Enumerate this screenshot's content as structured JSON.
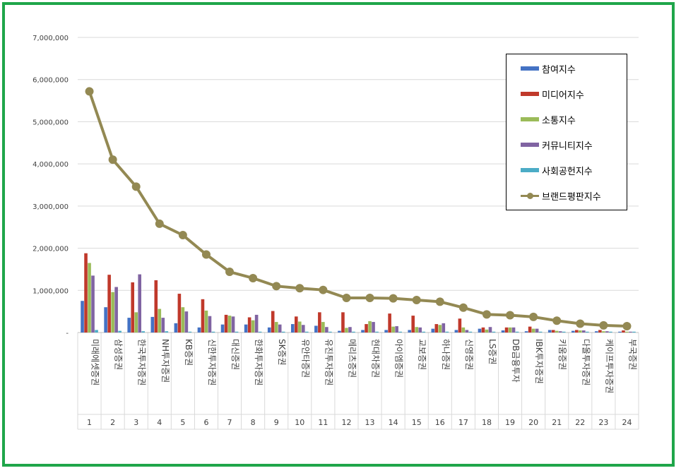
{
  "chart_data": {
    "type": "bar",
    "ylim": [
      0,
      7000000
    ],
    "yticks": [
      "7,000,000",
      "6,000,000",
      "5,000,000",
      "4,000,000",
      "3,000,000",
      "2,000,000",
      "1,000,000",
      "-"
    ],
    "categories": [
      "미래에셋증권",
      "삼성증권",
      "한국투자증권",
      "NH투자증권",
      "KB증권",
      "신한투자증권",
      "대신증권",
      "한화투자증권",
      "SK증권",
      "유안타증권",
      "유진투자증권",
      "메리츠증권",
      "현대차증권",
      "아이엠증권",
      "교보증권",
      "하나증권",
      "신영증권",
      "LS증권",
      "DB금융투자",
      "IBK투자증권",
      "키움증권",
      "다올투자증권",
      "케이프투자증권",
      "부국증권"
    ],
    "indices": [
      "1",
      "2",
      "3",
      "4",
      "5",
      "6",
      "7",
      "8",
      "9",
      "10",
      "11",
      "12",
      "13",
      "14",
      "15",
      "16",
      "17",
      "18",
      "19",
      "20",
      "21",
      "22",
      "23",
      "24"
    ],
    "legend_position": "top-right",
    "grid": true,
    "series": [
      {
        "name": "참여지수",
        "type": "bar",
        "color": "#4472c4",
        "values": [
          750000,
          600000,
          350000,
          370000,
          220000,
          120000,
          190000,
          190000,
          120000,
          200000,
          160000,
          40000,
          60000,
          60000,
          60000,
          90000,
          60000,
          90000,
          50000,
          30000,
          60000,
          40000,
          30000,
          20000
        ]
      },
      {
        "name": "미디어지수",
        "type": "bar",
        "color": "#c0392b",
        "values": [
          1880000,
          1370000,
          1190000,
          1240000,
          920000,
          790000,
          420000,
          360000,
          510000,
          380000,
          480000,
          480000,
          200000,
          450000,
          400000,
          200000,
          330000,
          120000,
          120000,
          140000,
          60000,
          60000,
          60000,
          50000
        ]
      },
      {
        "name": "소통지수",
        "type": "bar",
        "color": "#9bbb59",
        "values": [
          1650000,
          960000,
          480000,
          560000,
          600000,
          520000,
          400000,
          290000,
          250000,
          260000,
          250000,
          110000,
          270000,
          140000,
          130000,
          180000,
          120000,
          70000,
          120000,
          90000,
          40000,
          50000,
          30000,
          20000
        ]
      },
      {
        "name": "커뮤니티지수",
        "type": "bar",
        "color": "#8064a2",
        "values": [
          1350000,
          1080000,
          1380000,
          350000,
          500000,
          390000,
          380000,
          420000,
          190000,
          180000,
          130000,
          130000,
          250000,
          150000,
          120000,
          220000,
          60000,
          130000,
          120000,
          90000,
          30000,
          50000,
          30000,
          20000
        ]
      },
      {
        "name": "사회공헌지수",
        "type": "bar",
        "color": "#4bacc6",
        "values": [
          60000,
          40000,
          30000,
          30000,
          20000,
          20000,
          20000,
          20000,
          20000,
          20000,
          20000,
          20000,
          20000,
          20000,
          20000,
          20000,
          20000,
          20000,
          20000,
          20000,
          20000,
          20000,
          20000,
          20000
        ]
      },
      {
        "name": "브랜드평판지수",
        "type": "line",
        "color": "#938953",
        "values": [
          5720000,
          4100000,
          3460000,
          2580000,
          2310000,
          1850000,
          1440000,
          1290000,
          1100000,
          1050000,
          1010000,
          820000,
          820000,
          810000,
          770000,
          730000,
          590000,
          430000,
          410000,
          370000,
          280000,
          210000,
          170000,
          150000
        ]
      }
    ]
  }
}
